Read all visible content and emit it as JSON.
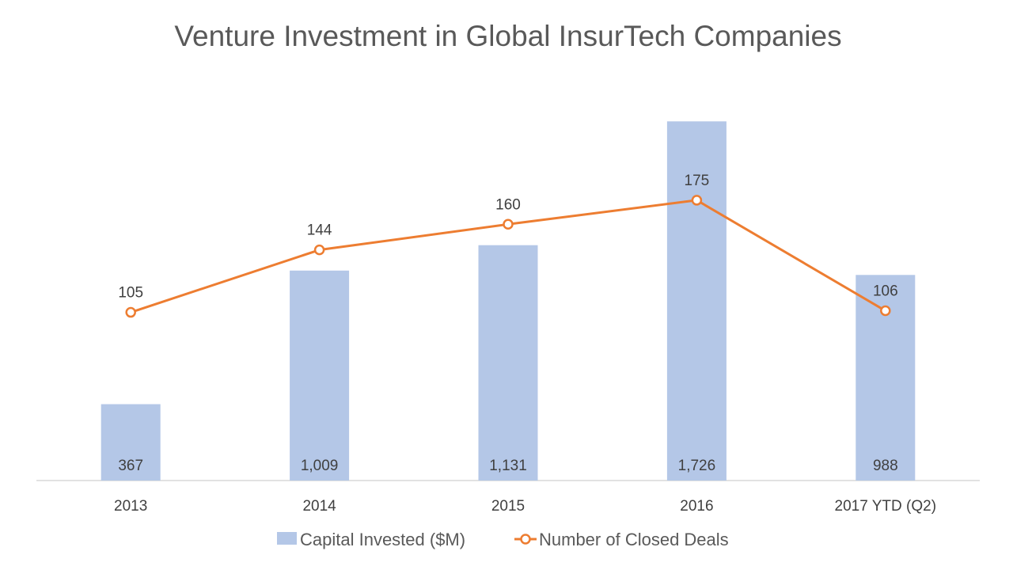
{
  "chart_data": {
    "type": "bar",
    "title": "Venture Investment in Global InsurTech Companies",
    "categories": [
      "2013",
      "2014",
      "2015",
      "2016",
      "2017 YTD (Q2)"
    ],
    "series": [
      {
        "name": "Capital Invested ($M)",
        "type": "bar",
        "axis": "primary",
        "values": [
          367,
          1009,
          1131,
          1726,
          988
        ],
        "value_labels": [
          "367",
          "1,009",
          "1,131",
          "1,726",
          "988"
        ],
        "color": "#b4c7e7"
      },
      {
        "name": "Number of Closed Deals",
        "type": "line",
        "axis": "secondary",
        "values": [
          105,
          144,
          160,
          175,
          106
        ],
        "value_labels": [
          "105",
          "144",
          "160",
          "175",
          "106"
        ],
        "color": "#ed7d31"
      }
    ],
    "ylim": [
      0,
      1750
    ],
    "y2lim": [
      0,
      300
    ],
    "grid": false,
    "legend": "bottom"
  }
}
